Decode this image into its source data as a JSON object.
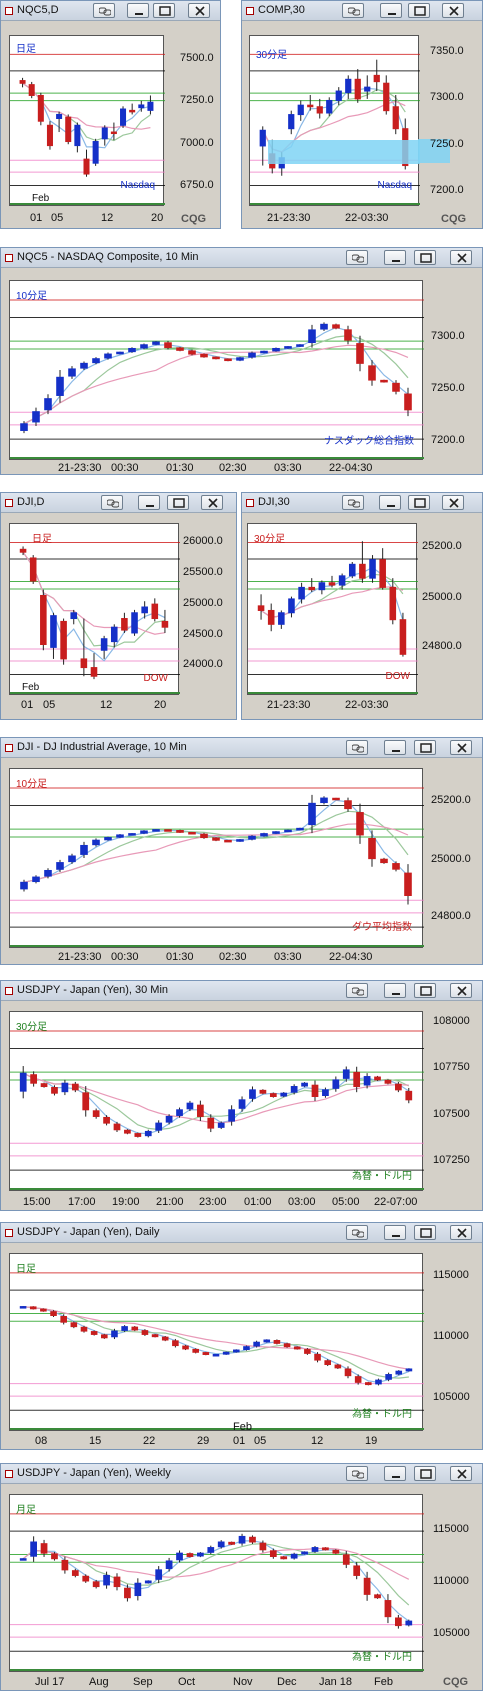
{
  "colors": {
    "up": "#1530c8",
    "down": "#c81e1e",
    "ma_pink": "#e89ab8",
    "ma_green": "#9cc89c",
    "ma_blue": "#8ab8e6",
    "ma_grey": "#a0a0a0",
    "res_red": "#d01818",
    "sup_green": "#20a020",
    "pink_line": "#f080c8",
    "black_line": "#000000",
    "highlight": "#7fd3f4"
  },
  "panels": [
    {
      "title": "NQC5,D",
      "period_label": "日足",
      "series_label": "Nasdaq",
      "yticks": [
        "7500.0",
        "7250.0",
        "7000.0",
        "6750.0"
      ],
      "xticks": [
        "01",
        "05",
        "12",
        "20"
      ],
      "month_label": "Feb",
      "cqg": "CQG",
      "chart_data": {
        "type": "candlestick",
        "ylim": [
          6600,
          7700
        ],
        "candles": [
          [
            7430,
            7450,
            7380,
            7410
          ],
          [
            7400,
            7420,
            7300,
            7320
          ],
          [
            7320,
            7340,
            7100,
            7130
          ],
          [
            7100,
            7130,
            6920,
            6950
          ],
          [
            7150,
            7200,
            7050,
            7180
          ],
          [
            7160,
            7180,
            6960,
            6980
          ],
          [
            6950,
            7120,
            6900,
            7100
          ],
          [
            6850,
            6920,
            6720,
            6740
          ],
          [
            6820,
            7000,
            6800,
            6980
          ],
          [
            7000,
            7100,
            6950,
            7080
          ],
          [
            7050,
            7120,
            6990,
            7040
          ],
          [
            7100,
            7240,
            7080,
            7220
          ],
          [
            7210,
            7260,
            7180,
            7200
          ],
          [
            7230,
            7280,
            7200,
            7250
          ],
          [
            7210,
            7320,
            7180,
            7270
          ]
        ]
      }
    },
    {
      "title": "COMP,30",
      "period_label": "30分足",
      "series_label": "Nasdaq",
      "yticks": [
        "7350.0",
        "7300.0",
        "7250.0",
        "7200.0"
      ],
      "xticks": [
        "21-23:30",
        "22-03:30"
      ],
      "cqg": "CQG",
      "chart_data": {
        "type": "candlestick",
        "ylim": [
          7180,
          7370
        ],
        "candles": [
          [
            7240,
            7265,
            7215,
            7260
          ],
          [
            7230,
            7248,
            7205,
            7212
          ],
          [
            7212,
            7232,
            7202,
            7225
          ],
          [
            7262,
            7285,
            7255,
            7280
          ],
          [
            7280,
            7298,
            7272,
            7292
          ],
          [
            7292,
            7305,
            7285,
            7290
          ],
          [
            7290,
            7300,
            7275,
            7282
          ],
          [
            7282,
            7302,
            7278,
            7298
          ],
          [
            7298,
            7315,
            7292,
            7310
          ],
          [
            7308,
            7330,
            7300,
            7325
          ],
          [
            7325,
            7338,
            7295,
            7300
          ],
          [
            7310,
            7330,
            7300,
            7315
          ],
          [
            7330,
            7350,
            7310,
            7322
          ],
          [
            7320,
            7330,
            7280,
            7285
          ],
          [
            7290,
            7305,
            7255,
            7262
          ],
          [
            7262,
            7275,
            7210,
            7215
          ]
        ]
      }
    },
    {
      "title": "NQC5 - NASDAQ Composite, 10 Min",
      "period_label": "10分足",
      "series_label": "ナスダック総合指数",
      "yticks": [
        "7300.0",
        "7250.0",
        "7200.0"
      ],
      "xticks": [
        "21-23:30",
        "00:30",
        "01:30",
        "02:30",
        "03:30",
        "22-04:30"
      ],
      "cqg": "CQG",
      "chart_data": {
        "type": "candlestick",
        "ylim": [
          7190,
          7360
        ],
        "trend": [
          7215,
          7228,
          7242,
          7265,
          7274,
          7280,
          7285,
          7290,
          7292,
          7296,
          7300,
          7303,
          7297,
          7294,
          7290,
          7287,
          7285,
          7283,
          7286,
          7291,
          7293,
          7296,
          7298,
          7300,
          7316,
          7322,
          7318,
          7305,
          7280,
          7262,
          7260,
          7250,
          7230
        ]
      }
    },
    {
      "title": "DJI,D",
      "period_label": "日足",
      "series_label": "DOW",
      "yticks": [
        "26000.0",
        "25500.0",
        "25000.0",
        "24500.0",
        "24000.0"
      ],
      "xticks": [
        "01",
        "05",
        "12",
        "20"
      ],
      "month_label": "Feb",
      "cqg": "CQG",
      "chart_data": {
        "type": "candlestick",
        "ylim": [
          23800,
          26400
        ],
        "candles": [
          [
            26100,
            26150,
            26000,
            26050
          ],
          [
            25950,
            26000,
            25500,
            25550
          ],
          [
            25300,
            25400,
            24350,
            24450
          ],
          [
            24400,
            25000,
            24200,
            24950
          ],
          [
            24850,
            24900,
            24100,
            24200
          ],
          [
            24900,
            25050,
            24800,
            25000
          ],
          [
            24200,
            24900,
            23900,
            24050
          ],
          [
            24050,
            24300,
            23850,
            23900
          ],
          [
            24350,
            24600,
            24200,
            24550
          ],
          [
            24500,
            24800,
            24400,
            24750
          ],
          [
            24900,
            25000,
            24650,
            24700
          ],
          [
            24650,
            25050,
            24600,
            25000
          ],
          [
            25000,
            25200,
            24900,
            25100
          ],
          [
            25150,
            25250,
            24850,
            24900
          ],
          [
            24850,
            25050,
            24650,
            24750
          ]
        ]
      }
    },
    {
      "title": "DJI,30",
      "period_label": "30分足",
      "series_label": "DOW",
      "yticks": [
        "25200.0",
        "25000.0",
        "24800.0"
      ],
      "xticks": [
        "21-23:30",
        "22-03:30"
      ],
      "cqg": "CQG",
      "chart_data": {
        "type": "candlestick",
        "ylim": [
          24650,
          25300
        ],
        "candles": [
          [
            24980,
            25030,
            24920,
            24960
          ],
          [
            24960,
            24990,
            24870,
            24900
          ],
          [
            24900,
            24960,
            24880,
            24950
          ],
          [
            24950,
            25020,
            24930,
            25010
          ],
          [
            25010,
            25080,
            24990,
            25060
          ],
          [
            25060,
            25100,
            25040,
            25050
          ],
          [
            25050,
            25090,
            25030,
            25080
          ],
          [
            25080,
            25110,
            25060,
            25070
          ],
          [
            25070,
            25120,
            25050,
            25110
          ],
          [
            25110,
            25170,
            25100,
            25160
          ],
          [
            25160,
            25260,
            25080,
            25100
          ],
          [
            25100,
            25200,
            25080,
            25180
          ],
          [
            25180,
            25230,
            25050,
            25060
          ],
          [
            25060,
            25100,
            24900,
            24920
          ],
          [
            24920,
            24950,
            24760,
            24770
          ]
        ]
      }
    },
    {
      "title": "DJI - DJ Industrial Average, 10 Min",
      "period_label": "10分足",
      "series_label": "ダウ平均指数",
      "yticks": [
        "25200.0",
        "25000.0",
        "24800.0"
      ],
      "xticks": [
        "21-23:30",
        "00:30",
        "01:30",
        "02:30",
        "03:30",
        "22-04:30"
      ],
      "cqg": "CQG",
      "chart_data": {
        "type": "candlestick",
        "ylim": [
          24700,
          25300
        ],
        "trend": [
          24900,
          24920,
          24945,
          24975,
          25000,
          25040,
          25060,
          25070,
          25080,
          25085,
          25095,
          25100,
          25098,
          25090,
          25085,
          25070,
          25060,
          25055,
          25062,
          25075,
          25085,
          25092,
          25098,
          25105,
          25200,
          25220,
          25215,
          25180,
          25080,
          24990,
          24975,
          24950,
          24850
        ]
      }
    },
    {
      "title": "USDJPY - Japan (Yen), 30 Min",
      "period_label": "30分足",
      "series_label": "為替・ドル円",
      "yticks": [
        "108000",
        "107750",
        "107500",
        "107250"
      ],
      "xticks": [
        "15:00",
        "17:00",
        "19:00",
        "21:00",
        "23:00",
        "01:00",
        "03:00",
        "05:00",
        "22-07:00"
      ],
      "cqg": "CQG",
      "chart_data": {
        "type": "candlestick",
        "ylim": [
          107150,
          108100
        ],
        "trend": [
          107780,
          107720,
          107700,
          107660,
          107720,
          107680,
          107560,
          107520,
          107480,
          107440,
          107420,
          107400,
          107430,
          107480,
          107520,
          107560,
          107600,
          107520,
          107450,
          107480,
          107560,
          107620,
          107680,
          107660,
          107640,
          107660,
          107700,
          107720,
          107640,
          107680,
          107740,
          107800,
          107700,
          107760,
          107740,
          107720,
          107680,
          107620
        ]
      }
    },
    {
      "title": "USDJPY - Japan (Yen), Daily",
      "period_label": "日足",
      "series_label": "為替・ドル円",
      "yticks": [
        "115000",
        "110000",
        "105000"
      ],
      "xticks": [
        "08",
        "15",
        "22",
        "29",
        "01",
        "05",
        "12",
        "19"
      ],
      "month_label": "Feb",
      "cqg": "CQG",
      "chart_data": {
        "type": "candlestick",
        "ylim": [
          103000,
          117000
        ],
        "trend": [
          113000,
          112800,
          112600,
          112200,
          111600,
          111200,
          110800,
          110500,
          110200,
          110800,
          111200,
          110900,
          110500,
          110300,
          110000,
          109500,
          109200,
          108900,
          108700,
          108700,
          108900,
          109100,
          109400,
          109800,
          110000,
          109700,
          109400,
          109200,
          108800,
          108200,
          107800,
          107500,
          106800,
          106200,
          106000,
          106400,
          106900,
          107200,
          107400
        ]
      }
    },
    {
      "title": "USDJPY - Japan (Yen), Weekly",
      "period_label": "月足",
      "series_label": "為替・ドル円",
      "yticks": [
        "115000",
        "110000",
        "105000"
      ],
      "xticks": [
        "Jul 17",
        "Aug",
        "Sep",
        "Oct",
        "Nov",
        "Dec",
        "Jan 18",
        "Feb"
      ],
      "cqg": "CQG",
      "chart_data": {
        "type": "candlestick",
        "ylim": [
          103000,
          117000
        ],
        "trend": [
          112000,
          113500,
          112500,
          112000,
          111000,
          110500,
          110000,
          109500,
          110500,
          109500,
          108500,
          109800,
          110000,
          111000,
          111800,
          112500,
          112200,
          112500,
          113000,
          113500,
          113300,
          114000,
          113500,
          112800,
          112200,
          112000,
          112400,
          112600,
          113000,
          112800,
          112500,
          111500,
          110500,
          108800,
          108500,
          106800,
          106000,
          106400
        ]
      }
    }
  ]
}
